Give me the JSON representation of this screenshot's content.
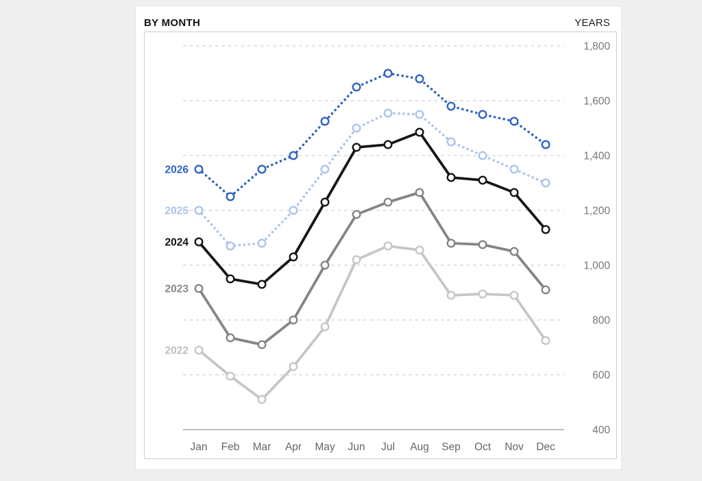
{
  "header": {
    "title": "BY MONTH",
    "right_label": "YEARS"
  },
  "chart_data": {
    "type": "line",
    "title": "BY MONTH",
    "legend_title": "YEARS",
    "xlabel": "",
    "ylabel": "",
    "categories": [
      "Jan",
      "Feb",
      "Mar",
      "Apr",
      "May",
      "Jun",
      "Jul",
      "Aug",
      "Sep",
      "Oct",
      "Nov",
      "Dec"
    ],
    "series": [
      {
        "name": "2022",
        "style": "solid",
        "color": "#c6c6c6",
        "label_color": "#bfbfbf",
        "values": [
          690,
          595,
          510,
          630,
          775,
          1020,
          1070,
          1055,
          890,
          895,
          890,
          725
        ]
      },
      {
        "name": "2023",
        "style": "solid",
        "color": "#858585",
        "label_color": "#8a8a8a",
        "values": [
          915,
          735,
          710,
          800,
          1000,
          1185,
          1230,
          1265,
          1080,
          1075,
          1050,
          910
        ]
      },
      {
        "name": "2024",
        "style": "solid",
        "color": "#161616",
        "label_color": "#111111",
        "values": [
          1085,
          950,
          930,
          1030,
          1230,
          1430,
          1440,
          1485,
          1320,
          1310,
          1265,
          1130
        ]
      },
      {
        "name": "2025",
        "style": "dotted",
        "color": "#abc4ec",
        "label_color": "#abc4ec",
        "values": [
          1200,
          1070,
          1080,
          1200,
          1350,
          1500,
          1555,
          1550,
          1450,
          1400,
          1350,
          1300
        ]
      },
      {
        "name": "2026",
        "style": "dotted",
        "color": "#3064c2",
        "label_color": "#2f62c0",
        "values": [
          1350,
          1250,
          1350,
          1400,
          1525,
          1650,
          1700,
          1680,
          1580,
          1550,
          1525,
          1440
        ]
      }
    ],
    "ylim": [
      400,
      1800
    ],
    "yticks": [
      {
        "value": 1800,
        "label": "1,800"
      },
      {
        "value": 1600,
        "label": "1,600"
      },
      {
        "value": 1400,
        "label": "1,400"
      },
      {
        "value": 1200,
        "label": "1,200"
      },
      {
        "value": 1000,
        "label": "1,000"
      },
      {
        "value": 800,
        "label": "800"
      },
      {
        "value": 600,
        "label": "600"
      },
      {
        "value": 400,
        "label": "400"
      }
    ],
    "grid": "horizontal dashed, solid baseline at 400",
    "grid_color": "#d9d9d9",
    "baseline_color": "#a8a8a8",
    "legend_position": "inline labels left of first data point",
    "tick_label_color": "#767676",
    "month_label_color": "#666666"
  }
}
